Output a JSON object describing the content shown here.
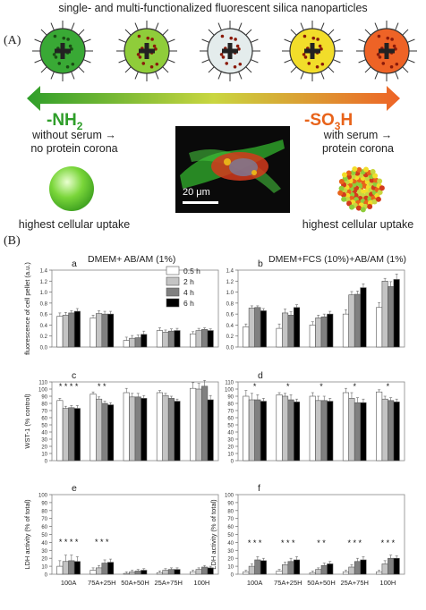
{
  "header": {
    "title": "single- and multi-functionalized fluorescent silica nanoparticles",
    "label_A": "(A)",
    "label_B": "(B)"
  },
  "particles": [
    {
      "groups": "NH2",
      "color": "#39a935"
    },
    {
      "groups": "NH2/SO3H",
      "color": "#8fcd3a"
    },
    {
      "groups": "NH2/SO3H",
      "color": "#e4ecec"
    },
    {
      "groups": "NH2/SO3H",
      "color": "#f2dd2a"
    },
    {
      "groups": "SO3H",
      "color": "#ee6326"
    }
  ],
  "left_group": {
    "name": "-NH",
    "sub": "2",
    "line1": "without serum →",
    "line2": "no protein corona",
    "uptake": "highest cellular uptake"
  },
  "right_group": {
    "name": "-SO",
    "sub": "3",
    "suffix": "H",
    "line1": "with serum →",
    "line2": "protein corona",
    "uptake": "highest cellular uptake"
  },
  "micrograph": {
    "scale_label": "20 μm"
  },
  "panel_titles": {
    "left": "DMEM+ AB/AM (1%)",
    "right": "DMEM+FCS (10%)+AB/AM (1%)"
  },
  "legend": [
    "0.5 h",
    "2 h",
    "4 h",
    "6 h"
  ],
  "colors": {
    "0.5 h": "#ffffff",
    "2 h": "#c4c4c4",
    "4 h": "#808080",
    "6 h": "#000000",
    "nh2": "#2f9e2a",
    "so3h": "#e8631a"
  },
  "chart_data": [
    {
      "id": "a",
      "type": "bar",
      "ylabel": "fluorescence of cell pellet (a.u.)",
      "ylim": [
        0,
        1.4
      ],
      "yticks": [
        "0.0",
        "0.2",
        "0.4",
        "0.6",
        "0.8",
        "1.0",
        "1.2",
        "1.4"
      ],
      "categories": [
        "100A",
        "75A+25H",
        "50A+50H",
        "25A+75H",
        "100H"
      ],
      "series": [
        {
          "name": "0.5 h",
          "values": [
            0.56,
            0.53,
            0.12,
            0.3,
            0.24
          ],
          "errors": [
            0.06,
            0.05,
            0.06,
            0.05,
            0.04
          ]
        },
        {
          "name": "2 h",
          "values": [
            0.58,
            0.61,
            0.16,
            0.27,
            0.3
          ],
          "errors": [
            0.05,
            0.05,
            0.05,
            0.04,
            0.04
          ]
        },
        {
          "name": "4 h",
          "values": [
            0.62,
            0.6,
            0.17,
            0.29,
            0.32
          ],
          "errors": [
            0.04,
            0.05,
            0.05,
            0.04,
            0.03
          ]
        },
        {
          "name": "6 h",
          "values": [
            0.65,
            0.6,
            0.23,
            0.3,
            0.3
          ],
          "errors": [
            0.05,
            0.05,
            0.06,
            0.04,
            0.03
          ]
        }
      ],
      "markers": []
    },
    {
      "id": "b",
      "type": "bar",
      "ylabel": "",
      "ylim": [
        0,
        1.4
      ],
      "yticks": [
        "0.0",
        "0.2",
        "0.4",
        "0.6",
        "0.8",
        "1.0",
        "1.2",
        "1.4"
      ],
      "categories": [
        "100A",
        "75A+25H",
        "50A+50H",
        "25A+75H",
        "100H"
      ],
      "series": [
        {
          "name": "0.5 h",
          "values": [
            0.37,
            0.34,
            0.4,
            0.6,
            0.72
          ],
          "errors": [
            0.05,
            0.08,
            0.06,
            0.08,
            0.09
          ]
        },
        {
          "name": "2 h",
          "values": [
            0.71,
            0.62,
            0.53,
            0.95,
            1.2
          ],
          "errors": [
            0.04,
            0.07,
            0.05,
            0.06,
            0.05
          ]
        },
        {
          "name": "4 h",
          "values": [
            0.72,
            0.58,
            0.55,
            0.96,
            1.1
          ],
          "errors": [
            0.03,
            0.06,
            0.05,
            0.06,
            0.09
          ]
        },
        {
          "name": "6 h",
          "values": [
            0.66,
            0.72,
            0.6,
            1.08,
            1.23
          ],
          "errors": [
            0.04,
            0.05,
            0.05,
            0.07,
            0.1
          ]
        }
      ],
      "markers": []
    },
    {
      "id": "c",
      "type": "bar",
      "ylabel": "WST-1 (% control)",
      "ylim": [
        0,
        110
      ],
      "yticks": [
        "0",
        "10",
        "20",
        "30",
        "40",
        "50",
        "60",
        "70",
        "80",
        "90",
        "100",
        "110"
      ],
      "categories": [
        "100A",
        "75A+25H",
        "50A+50H",
        "25A+75H",
        "100H"
      ],
      "series": [
        {
          "name": "0.5 h",
          "values": [
            84,
            93,
            95,
            95,
            101
          ],
          "errors": [
            3,
            3,
            6,
            3,
            8
          ]
        },
        {
          "name": "2 h",
          "values": [
            73,
            86,
            89,
            91,
            100
          ],
          "errors": [
            3,
            3,
            5,
            3,
            8
          ]
        },
        {
          "name": "4 h",
          "values": [
            74,
            80,
            89,
            87,
            104
          ],
          "errors": [
            3,
            3,
            5,
            3,
            8
          ]
        },
        {
          "name": "6 h",
          "values": [
            73,
            78,
            87,
            83,
            85
          ],
          "errors": [
            4,
            3,
            4,
            3,
            6
          ]
        }
      ],
      "markers": [
        {
          "text": "* * * *",
          "category": "100A",
          "y": 100
        },
        {
          "text": "* *",
          "category": "75A+25H",
          "y": 100
        }
      ]
    },
    {
      "id": "d",
      "type": "bar",
      "ylabel": "",
      "ylim": [
        0,
        110
      ],
      "yticks": [
        "0",
        "10",
        "20",
        "30",
        "40",
        "50",
        "60",
        "70",
        "80",
        "90",
        "100",
        "110"
      ],
      "categories": [
        "100A",
        "75A+25H",
        "50A+50H",
        "25A+75H",
        "100H"
      ],
      "series": [
        {
          "name": "0.5 h",
          "values": [
            90,
            92,
            90,
            95,
            96
          ],
          "errors": [
            8,
            3,
            5,
            6,
            3
          ]
        },
        {
          "name": "2 h",
          "values": [
            85,
            90,
            84,
            87,
            86
          ],
          "errors": [
            9,
            4,
            6,
            8,
            4
          ]
        },
        {
          "name": "4 h",
          "values": [
            85,
            85,
            84,
            81,
            84
          ],
          "errors": [
            7,
            7,
            6,
            7,
            4
          ]
        },
        {
          "name": "6 h",
          "values": [
            83,
            82,
            83,
            81,
            82
          ],
          "errors": [
            4,
            4,
            4,
            5,
            4
          ]
        }
      ],
      "markers": [
        {
          "text": "*",
          "category": "100A",
          "y": 100
        },
        {
          "text": "*",
          "category": "75A+25H",
          "y": 100
        },
        {
          "text": "*",
          "category": "50A+50H",
          "y": 100
        },
        {
          "text": "*",
          "category": "25A+75H",
          "y": 100
        },
        {
          "text": "*",
          "category": "100H",
          "y": 100
        }
      ]
    },
    {
      "id": "e",
      "type": "bar",
      "ylabel": "LDH activity (% of total)",
      "ylim": [
        0,
        100
      ],
      "yticks": [
        "0",
        "10",
        "20",
        "30",
        "40",
        "50",
        "60",
        "70",
        "80",
        "90",
        "100"
      ],
      "categories": [
        "100A",
        "75A+25H",
        "50A+50H",
        "25A+75H",
        "100H"
      ],
      "series": [
        {
          "name": "0.5 h",
          "values": [
            10,
            5,
            1,
            2,
            3
          ],
          "errors": [
            7,
            3,
            2,
            2,
            2
          ]
        },
        {
          "name": "2 h",
          "values": [
            16,
            8,
            3,
            5,
            6
          ],
          "errors": [
            8,
            3,
            2,
            2,
            2
          ]
        },
        {
          "name": "4 h",
          "values": [
            17,
            14,
            4,
            6,
            9
          ],
          "errors": [
            7,
            4,
            2,
            2,
            2
          ]
        },
        {
          "name": "6 h",
          "values": [
            16,
            15,
            5,
            6,
            8
          ],
          "errors": [
            6,
            4,
            2,
            2,
            2
          ]
        }
      ],
      "markers": [
        {
          "text": "* * * *",
          "category": "100A",
          "y": 37
        },
        {
          "text": "* * *",
          "category": "75A+25H",
          "y": 37
        }
      ]
    },
    {
      "id": "f",
      "type": "bar",
      "ylabel": "LDH activity (% of total)",
      "ylim": [
        0,
        100
      ],
      "yticks": [
        "0",
        "10",
        "20",
        "30",
        "40",
        "50",
        "60",
        "70",
        "80",
        "90",
        "100"
      ],
      "categories": [
        "100A",
        "75A+25H",
        "50A+50H",
        "25A+75H",
        "100H"
      ],
      "series": [
        {
          "name": "0.5 h",
          "values": [
            3,
            4,
            2,
            3,
            3
          ],
          "errors": [
            2,
            2,
            2,
            2,
            2
          ]
        },
        {
          "name": "2 h",
          "values": [
            10,
            12,
            6,
            9,
            13
          ],
          "errors": [
            3,
            3,
            2,
            3,
            4
          ]
        },
        {
          "name": "4 h",
          "values": [
            18,
            16,
            11,
            16,
            20
          ],
          "errors": [
            4,
            4,
            3,
            4,
            4
          ]
        },
        {
          "name": "6 h",
          "values": [
            17,
            18,
            13,
            18,
            20
          ],
          "errors": [
            3,
            4,
            3,
            4,
            3
          ]
        }
      ],
      "markers": [
        {
          "text": "* * *",
          "category": "100A",
          "y": 36
        },
        {
          "text": "* * *",
          "category": "75A+25H",
          "y": 36
        },
        {
          "text": "* *",
          "category": "50A+50H",
          "y": 36
        },
        {
          "text": "* * *",
          "category": "25A+75H",
          "y": 36
        },
        {
          "text": "* * *",
          "category": "100H",
          "y": 36
        }
      ]
    }
  ]
}
